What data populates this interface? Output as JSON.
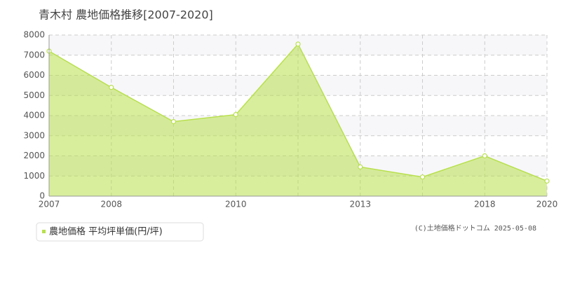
{
  "chart_data": {
    "type": "area",
    "title": "青木村 農地価格推移[2007-2020]",
    "categories": [
      "2007",
      "2008",
      null,
      "2010",
      null,
      "2013",
      null,
      "2018",
      "2020"
    ],
    "series": [
      {
        "name": "農地価格 平均坪単価(円/坪)",
        "color": "#b8e04c",
        "values": [
          7200,
          5400,
          3700,
          4050,
          7550,
          1450,
          950,
          2000,
          750
        ]
      }
    ],
    "ylim": [
      0,
      8000
    ],
    "yticks": [
      0,
      1000,
      2000,
      3000,
      4000,
      5000,
      6000,
      7000,
      8000
    ],
    "grid": true,
    "copyright": "(C)土地価格ドットコム 2025-05-08"
  }
}
